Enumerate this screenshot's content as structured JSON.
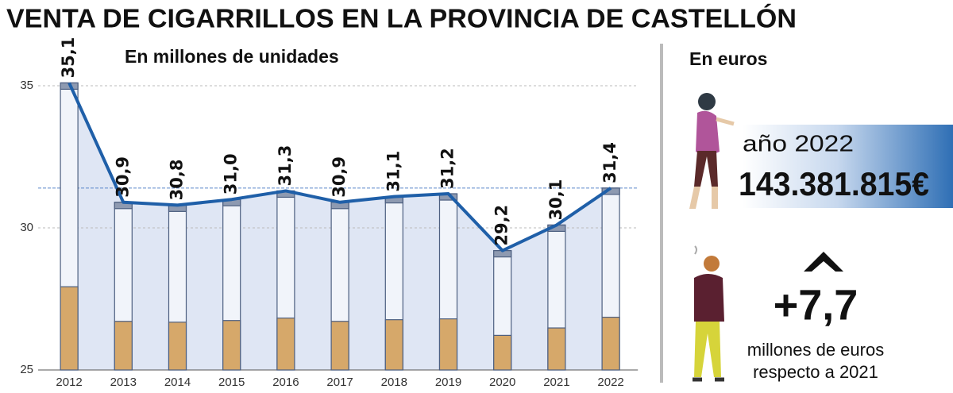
{
  "chart_data": {
    "type": "bar",
    "title": "VENTA DE CIGARRILLOS EN LA PROVINCIA DE CASTELLÓN",
    "subtitle": "En millones de unidades",
    "categories": [
      "2012",
      "2013",
      "2014",
      "2015",
      "2016",
      "2017",
      "2018",
      "2019",
      "2020",
      "2021",
      "2022"
    ],
    "values": [
      35.1,
      30.9,
      30.8,
      31.0,
      31.3,
      30.9,
      31.1,
      31.2,
      29.2,
      30.1,
      31.4
    ],
    "value_labels": [
      "35,1",
      "30,9",
      "30,8",
      "31,0",
      "31,3",
      "30,9",
      "31,1",
      "31,2",
      "29,2",
      "30,1",
      "31,4"
    ],
    "color": "#1f5fa8",
    "ylim": [
      25,
      35.5
    ],
    "yticks": [
      25,
      30,
      35
    ],
    "grid": true
  },
  "panel": {
    "heading": "En euros",
    "year_label": "año 2022",
    "amount": "143.381.815€",
    "change": "+7,7",
    "change_unit": "millones de euros",
    "change_ref": "respecto a 2021"
  }
}
